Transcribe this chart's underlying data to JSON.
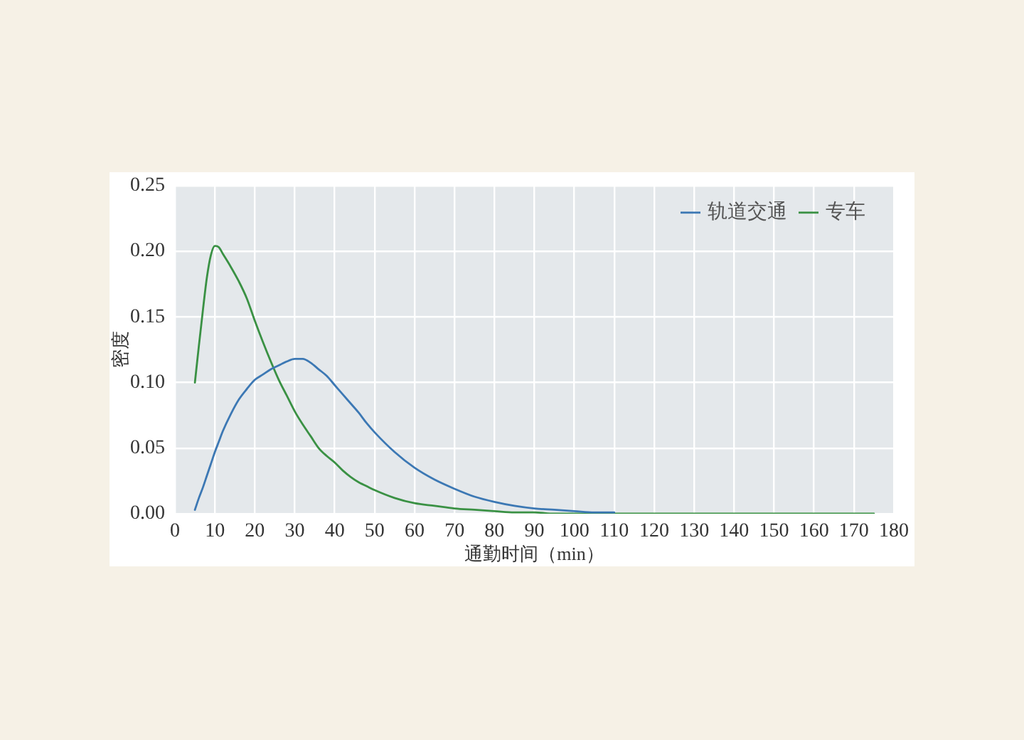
{
  "chart_data": {
    "type": "line",
    "xlabel": "通勤时间（min）",
    "ylabel": "密度",
    "x": [
      5,
      6,
      7,
      8,
      9,
      10,
      11,
      12,
      14,
      16,
      18,
      20,
      22,
      24,
      26,
      28,
      30,
      32,
      34,
      36,
      38,
      40,
      42,
      44,
      46,
      48,
      50,
      55,
      60,
      65,
      70,
      75,
      80,
      85,
      90,
      95,
      100,
      105,
      110,
      120,
      130,
      140,
      150,
      160,
      170,
      175
    ],
    "series": [
      {
        "name": "轨道交通",
        "color": "#3c78b4",
        "x": [
          5,
          6,
          7,
          8,
          9,
          10,
          11,
          12,
          14,
          16,
          18,
          20,
          22,
          24,
          26,
          28,
          30,
          32,
          34,
          36,
          38,
          40,
          42,
          44,
          46,
          48,
          50,
          55,
          60,
          65,
          70,
          75,
          80,
          85,
          90,
          95,
          100,
          105,
          110
        ],
        "values": [
          0.003,
          0.012,
          0.02,
          0.029,
          0.038,
          0.047,
          0.055,
          0.063,
          0.076,
          0.087,
          0.095,
          0.102,
          0.106,
          0.11,
          0.113,
          0.116,
          0.118,
          0.118,
          0.115,
          0.11,
          0.105,
          0.098,
          0.091,
          0.084,
          0.077,
          0.069,
          0.062,
          0.047,
          0.035,
          0.026,
          0.019,
          0.013,
          0.009,
          0.006,
          0.004,
          0.003,
          0.002,
          0.001,
          0.001
        ]
      },
      {
        "name": "专车",
        "color": "#3a9144",
        "values": [
          0.1,
          0.128,
          0.155,
          0.18,
          0.197,
          0.204,
          0.203,
          0.198,
          0.188,
          0.177,
          0.164,
          0.147,
          0.131,
          0.116,
          0.102,
          0.09,
          0.078,
          0.068,
          0.059,
          0.05,
          0.044,
          0.039,
          0.033,
          0.028,
          0.024,
          0.021,
          0.018,
          0.012,
          0.008,
          0.006,
          0.004,
          0.003,
          0.002,
          0.001,
          0.001,
          0,
          0,
          0,
          0,
          0,
          0,
          0,
          0,
          0,
          0,
          0
        ]
      }
    ],
    "xlim": [
      0,
      180
    ],
    "xticks": [
      0,
      10,
      20,
      30,
      40,
      50,
      60,
      70,
      80,
      90,
      100,
      110,
      120,
      130,
      140,
      150,
      160,
      170,
      180
    ],
    "ylim": [
      0,
      0.25
    ],
    "yticks": [
      {
        "value": 0,
        "label": "0.00"
      },
      0.05,
      {
        "value": 0.1,
        "label": "0.10"
      },
      0.15,
      {
        "value": 0.2,
        "label": "0.20"
      },
      0.25
    ],
    "grid": true,
    "legend": "top right",
    "marker": "none",
    "line_style": "solid"
  }
}
